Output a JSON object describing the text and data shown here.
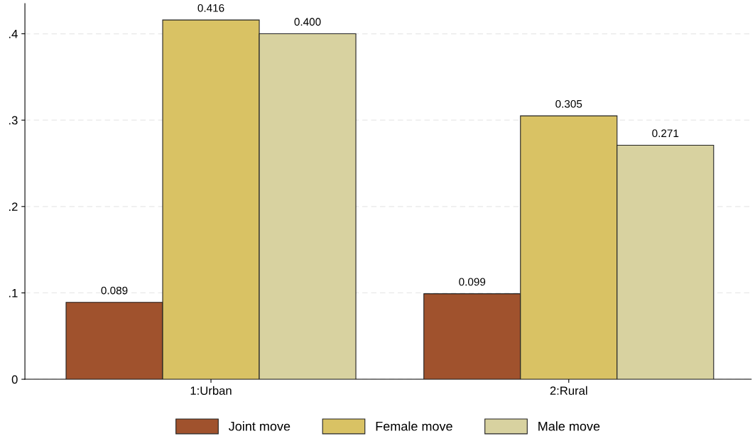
{
  "chart_data": {
    "type": "bar",
    "categories": [
      "1:Urban",
      "2:Rural"
    ],
    "series": [
      {
        "name": "Joint move",
        "color": "#a0522d",
        "values": [
          0.089,
          0.099
        ],
        "value_labels": [
          "0.089",
          "0.099"
        ]
      },
      {
        "name": "Female move",
        "color": "#d9c264",
        "values": [
          0.416,
          0.305
        ],
        "value_labels": [
          "0.416",
          "0.305"
        ]
      },
      {
        "name": "Male move",
        "color": "#d8d2a0",
        "values": [
          0.4,
          0.271
        ],
        "value_labels": [
          "0.400",
          "0.271"
        ]
      }
    ],
    "ylim": [
      0,
      0.435
    ],
    "yticks": [
      {
        "value": 0,
        "label": "0"
      },
      {
        "value": 0.1,
        "label": ".1"
      },
      {
        "value": 0.2,
        "label": ".2"
      },
      {
        "value": 0.3,
        "label": ".3"
      },
      {
        "value": 0.4,
        "label": ".4"
      }
    ],
    "grid": "y",
    "legend": "bottom"
  }
}
